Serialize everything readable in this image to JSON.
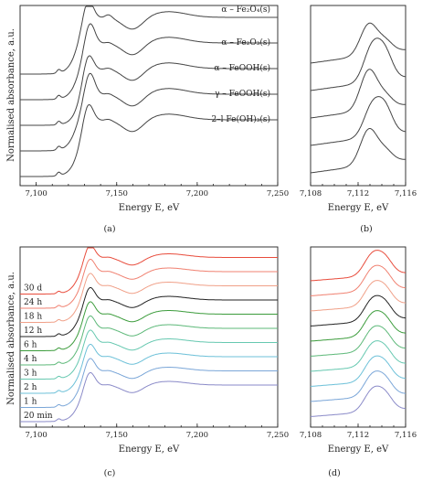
{
  "figure": {
    "ylabel": "Normalised absorbance, a.u.",
    "xlabel": "Energy E, eV",
    "captions": [
      "(a)",
      "(b)",
      "(c)",
      "(d)"
    ]
  },
  "chart_data": [
    {
      "panel": "(a)",
      "type": "line",
      "xlabel": "Energy E, eV",
      "ylabel": "Normalised absorbance, a.u.",
      "xlim": [
        7090,
        7250
      ],
      "xticks": [
        "7,100",
        "7,150",
        "7,200",
        "7,250"
      ],
      "series": [
        {
          "name": "α – Fe₂O₄(s)",
          "color": "#444444"
        },
        {
          "name": "α – Fe₂O₃(s)",
          "color": "#444444"
        },
        {
          "name": "α – FeOOH(s)",
          "color": "#444444"
        },
        {
          "name": "γ – FeOOH(s)",
          "color": "#444444"
        },
        {
          "name": "2–l Fe(OH)₃(s)",
          "color": "#444444"
        }
      ]
    },
    {
      "panel": "(b)",
      "type": "line",
      "xlabel": "Energy E, eV",
      "xlim": [
        7108,
        7116
      ],
      "xticks": [
        "7,108",
        "7,112",
        "7,116"
      ],
      "series_count": 5
    },
    {
      "panel": "(c)",
      "type": "line",
      "xlabel": "Energy E, eV",
      "ylabel": "Normalised absorbance, a.u.",
      "xlim": [
        7090,
        7250
      ],
      "xticks": [
        "7,100",
        "7,150",
        "7,200",
        "7,250"
      ],
      "series": [
        {
          "name": "20 min",
          "color": "#8a8ac8"
        },
        {
          "name": "1 h",
          "color": "#7aa6d8"
        },
        {
          "name": "2 h",
          "color": "#6cc0d8"
        },
        {
          "name": "3 h",
          "color": "#66c8b0"
        },
        {
          "name": "4 h",
          "color": "#5cb878"
        },
        {
          "name": "6 h",
          "color": "#3c9c3c"
        },
        {
          "name": "12 h",
          "color": "#222222"
        },
        {
          "name": "18 h",
          "color": "#f0a088"
        },
        {
          "name": "24 h",
          "color": "#f08070"
        },
        {
          "name": "30 d",
          "color": "#e84c3c"
        }
      ]
    },
    {
      "panel": "(d)",
      "type": "line",
      "xlabel": "Energy E, eV",
      "xlim": [
        7108,
        7116
      ],
      "xticks": [
        "7,108",
        "7,112",
        "7,116"
      ],
      "series_count": 10
    }
  ]
}
